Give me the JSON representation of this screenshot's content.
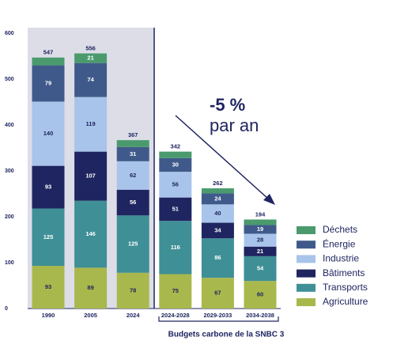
{
  "chart_data": {
    "type": "stacked_bar",
    "categories": [
      "1990",
      "2005",
      "2024",
      "2024-2028",
      "2029-2033",
      "2034-2038"
    ],
    "series": [
      {
        "name": "Agriculture",
        "color": "#a9b84c",
        "label_color": "#1f2560",
        "values": [
          93,
          89,
          78,
          75,
          67,
          60
        ]
      },
      {
        "name": "Transports",
        "color": "#3f8f96",
        "label_color": "#ffffff",
        "values": [
          125,
          146,
          125,
          116,
          86,
          54
        ]
      },
      {
        "name": "Bâtiments",
        "color": "#1f2560",
        "label_color": "#ffffff",
        "values": [
          93,
          107,
          56,
          51,
          34,
          21
        ]
      },
      {
        "name": "Industrie",
        "color": "#a9c4ea",
        "label_color": "#1f2560",
        "values": [
          140,
          119,
          62,
          56,
          40,
          28
        ]
      },
      {
        "name": "Énergie",
        "color": "#3f5a8a",
        "label_color": "#ffffff",
        "values": [
          79,
          74,
          31,
          30,
          24,
          19
        ]
      },
      {
        "name": "Déchets",
        "color": "#4a9a6e",
        "label_color": "#ffffff",
        "values": [
          17,
          21,
          15,
          14,
          11,
          12
        ]
      }
    ],
    "totals": [
      547,
      556,
      367,
      342,
      262,
      194
    ],
    "ylim": [
      0,
      600
    ],
    "yticks": [
      0,
      100,
      200,
      300,
      400,
      500,
      600
    ],
    "annotation": {
      "line1": "-5 %",
      "line2": "par an"
    },
    "group_label": "Budgets carbone de la SNBC 3"
  }
}
